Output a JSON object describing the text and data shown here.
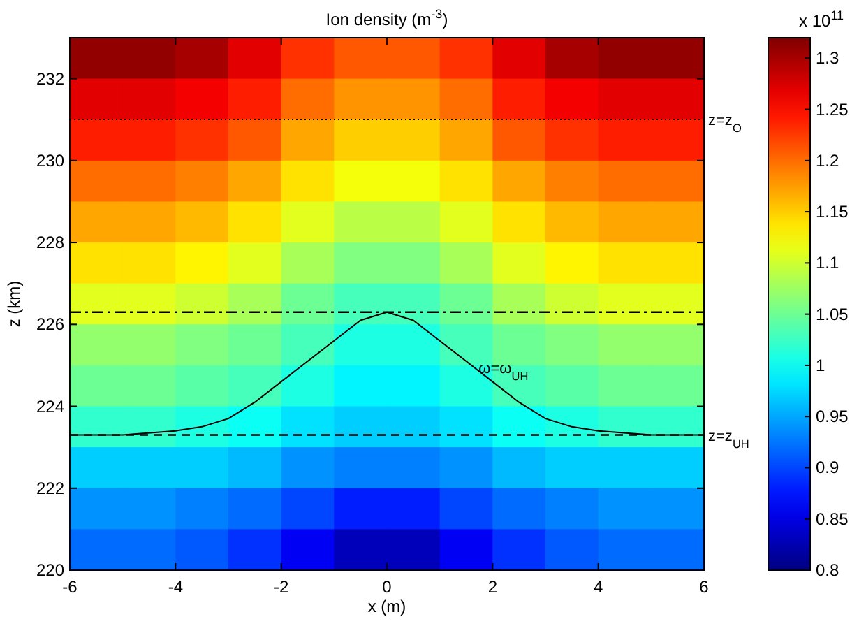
{
  "chart_data": [
    {
      "type": "heatmap",
      "title": "Ion density (m$^{-3}$)",
      "clabel": "x 10$^{11}$",
      "categories": [
        null,
        null,
        null,
        null,
        null,
        null,
        null,
        null,
        null,
        null,
        null,
        null
      ],
      "y_categories": [
        null,
        null,
        null,
        null,
        null,
        null,
        null,
        null,
        null,
        null,
        null,
        null,
        null
      ],
      "cells": [
        [
          1.31,
          1.31,
          1.3,
          1.27,
          1.23,
          1.21,
          1.21,
          1.23,
          1.27,
          1.3,
          1.31,
          1.31
        ],
        [
          1.27,
          1.27,
          1.26,
          1.24,
          1.2,
          1.18,
          1.18,
          1.2,
          1.24,
          1.26,
          1.27,
          1.27
        ],
        [
          1.24,
          1.24,
          1.23,
          1.21,
          1.17,
          1.15,
          1.15,
          1.17,
          1.21,
          1.23,
          1.24,
          1.24
        ],
        [
          1.2,
          1.2,
          1.19,
          1.17,
          1.14,
          1.12,
          1.12,
          1.14,
          1.17,
          1.19,
          1.2,
          1.2
        ],
        [
          1.17,
          1.17,
          1.16,
          1.14,
          1.11,
          1.09,
          1.09,
          1.11,
          1.14,
          1.16,
          1.17,
          1.17
        ],
        [
          1.14,
          1.14,
          1.13,
          1.11,
          1.08,
          1.06,
          1.06,
          1.08,
          1.11,
          1.13,
          1.14,
          1.14
        ],
        [
          1.11,
          1.11,
          1.1,
          1.08,
          1.05,
          1.03,
          1.03,
          1.05,
          1.08,
          1.1,
          1.11,
          1.11
        ],
        [
          1.07,
          1.07,
          1.06,
          1.05,
          1.03,
          1.01,
          1.01,
          1.03,
          1.05,
          1.06,
          1.07,
          1.07
        ],
        [
          1.05,
          1.05,
          1.04,
          1.03,
          1.01,
          0.99,
          0.99,
          1.01,
          1.03,
          1.04,
          1.05,
          1.05
        ],
        [
          1.02,
          1.02,
          1.01,
          1.0,
          0.98,
          0.97,
          0.97,
          0.98,
          1.0,
          1.01,
          1.02,
          1.02
        ],
        [
          0.97,
          0.97,
          0.97,
          0.96,
          0.94,
          0.93,
          0.93,
          0.94,
          0.96,
          0.97,
          0.97,
          0.97
        ],
        [
          0.94,
          0.94,
          0.93,
          0.92,
          0.9,
          0.88,
          0.88,
          0.9,
          0.92,
          0.93,
          0.94,
          0.94
        ],
        [
          0.92,
          0.92,
          0.91,
          0.89,
          0.86,
          0.83,
          0.83,
          0.86,
          0.89,
          0.91,
          0.92,
          0.92
        ]
      ],
      "clim": [
        0.8,
        1.32
      ],
      "cticks": [
        0.8,
        0.85,
        0.9,
        0.95,
        1,
        1.05,
        1.1,
        1.15,
        1.2,
        1.25,
        1.3
      ]
    },
    {
      "type": "line",
      "xlabel": "x (m)",
      "ylabel": "z (km)",
      "xlim": [
        -6,
        6
      ],
      "xticks": [
        -6,
        -4,
        -2,
        0,
        2,
        4,
        6
      ],
      "ylim": [
        220,
        233
      ],
      "yticks": [
        220,
        222,
        224,
        226,
        228,
        230,
        232
      ],
      "series": [
        {
          "color": "#000000",
          "x": [
            -6,
            -5,
            -4,
            -3.5,
            -3,
            -2.5,
            -2,
            -1.5,
            -1,
            -0.5,
            0,
            0.5,
            1,
            1.5,
            2,
            2.5,
            3,
            3.5,
            4,
            5,
            6
          ],
          "values": [
            223.3,
            223.3,
            223.4,
            223.5,
            223.7,
            224.1,
            224.6,
            225.1,
            225.6,
            226.1,
            226.3,
            226.1,
            225.6,
            225.1,
            224.6,
            224.1,
            223.7,
            223.5,
            223.4,
            223.3,
            223.3
          ]
        }
      ],
      "annotations": [
        {
          "text": "ω=ω$_{UH}$",
          "x": 2.0,
          "y": 224.6
        }
      ],
      "ref_lines": [
        {
          "axis": "y",
          "value": 231.0,
          "label": "z=z$_{O}$",
          "line_style": "dotted"
        },
        {
          "axis": "y",
          "value": 226.3,
          "label": null,
          "line_style": "dashdot"
        },
        {
          "axis": "y",
          "value": 223.3,
          "label": "z=z$_{UH}$",
          "line_style": "dashed"
        }
      ]
    }
  ]
}
